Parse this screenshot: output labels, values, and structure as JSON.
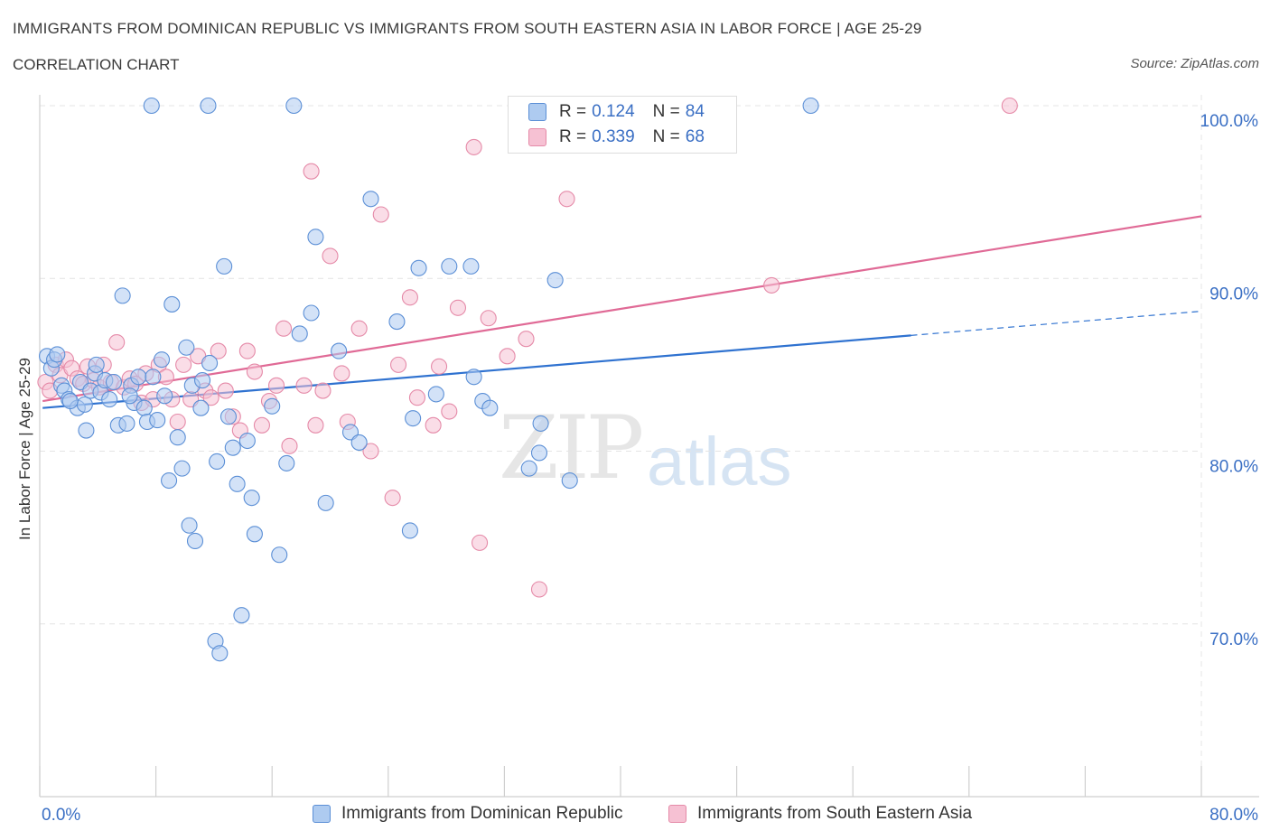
{
  "header": {
    "title": "IMMIGRANTS FROM DOMINICAN REPUBLIC VS IMMIGRANTS FROM SOUTH EASTERN ASIA IN LABOR FORCE | AGE 25-29",
    "subtitle": "CORRELATION CHART",
    "source": "Source: ZipAtlas.com"
  },
  "watermark": {
    "zip": "ZIP",
    "atlas": "atlas"
  },
  "legend": {
    "rows": [
      {
        "r_label": "R =",
        "r_value": "0.124",
        "n_label": "N =",
        "n_value": "84"
      },
      {
        "r_label": "R =",
        "r_value": "0.339",
        "n_label": "N =",
        "n_value": "68"
      }
    ]
  },
  "bottom_legend": {
    "series1": "Immigrants from Dominican Republic",
    "series2": "Immigrants from South Eastern Asia"
  },
  "colors": {
    "blue_fill": "#aecbf0",
    "blue_stroke": "#5b8fd6",
    "blue_line": "#2f72d0",
    "pink_fill": "#f6c1d3",
    "pink_stroke": "#e58aa8",
    "pink_line": "#e06a96",
    "tick_text": "#3a6fc4",
    "grid": "#e4e4e4"
  },
  "chart_data": {
    "type": "scatter",
    "title": "IMMIGRANTS FROM DOMINICAN REPUBLIC VS IMMIGRANTS FROM SOUTH EASTERN ASIA IN LABOR FORCE | AGE 25-29",
    "ylabel": "In Labor Force | Age 25-29",
    "xlim": [
      0,
      80
    ],
    "ylim": [
      60,
      100
    ],
    "x_tick_labels": [
      "0.0%",
      "80.0%"
    ],
    "y_ticks": [
      {
        "value": 100,
        "label": "100.0%"
      },
      {
        "value": 90,
        "label": "90.0%"
      },
      {
        "value": 80,
        "label": "80.0%"
      },
      {
        "value": 70,
        "label": "70.0%"
      }
    ],
    "grid": true,
    "legend_position": "top-center",
    "series": [
      {
        "name": "Immigrants from Dominican Republic",
        "R": 0.124,
        "N": 84,
        "trend": {
          "x0": 0.2,
          "y0": 82.5,
          "x1": 60.0,
          "y1": 86.7,
          "dash_to_x": 80.0,
          "dash_to_y": 88.1
        },
        "points": [
          [
            0.5,
            85.5
          ],
          [
            0.8,
            84.8
          ],
          [
            1.0,
            85.3
          ],
          [
            1.2,
            85.6
          ],
          [
            1.5,
            83.8
          ],
          [
            1.7,
            83.5
          ],
          [
            2.0,
            83.0
          ],
          [
            2.6,
            82.5
          ],
          [
            2.8,
            84.0
          ],
          [
            3.1,
            82.7
          ],
          [
            3.2,
            81.2
          ],
          [
            3.5,
            83.5
          ],
          [
            3.8,
            84.5
          ],
          [
            3.9,
            85.0
          ],
          [
            4.2,
            83.4
          ],
          [
            4.5,
            84.1
          ],
          [
            4.8,
            83.0
          ],
          [
            5.1,
            84.0
          ],
          [
            5.4,
            81.5
          ],
          [
            5.7,
            89.0
          ],
          [
            6.0,
            81.6
          ],
          [
            6.3,
            83.8
          ],
          [
            6.5,
            82.8
          ],
          [
            6.8,
            84.3
          ],
          [
            7.2,
            82.5
          ],
          [
            7.4,
            81.7
          ],
          [
            7.7,
            100.0
          ],
          [
            7.8,
            84.3
          ],
          [
            8.1,
            81.8
          ],
          [
            8.4,
            85.3
          ],
          [
            8.6,
            83.2
          ],
          [
            8.9,
            78.3
          ],
          [
            9.1,
            88.5
          ],
          [
            9.5,
            80.8
          ],
          [
            9.8,
            79.0
          ],
          [
            10.1,
            86.0
          ],
          [
            10.3,
            75.7
          ],
          [
            10.5,
            83.8
          ],
          [
            10.7,
            74.8
          ],
          [
            11.1,
            82.5
          ],
          [
            11.2,
            84.1
          ],
          [
            11.6,
            100.0
          ],
          [
            11.7,
            85.1
          ],
          [
            12.1,
            69.0
          ],
          [
            12.2,
            79.4
          ],
          [
            12.4,
            68.3
          ],
          [
            12.7,
            90.7
          ],
          [
            13.0,
            82.0
          ],
          [
            13.3,
            80.2
          ],
          [
            13.6,
            78.1
          ],
          [
            13.9,
            70.5
          ],
          [
            14.3,
            80.6
          ],
          [
            14.6,
            77.3
          ],
          [
            14.8,
            75.2
          ],
          [
            16.0,
            82.6
          ],
          [
            16.5,
            74.0
          ],
          [
            17.0,
            79.3
          ],
          [
            17.5,
            100.0
          ],
          [
            17.9,
            86.8
          ],
          [
            18.7,
            88.0
          ],
          [
            19.0,
            92.4
          ],
          [
            19.7,
            77.0
          ],
          [
            20.6,
            85.8
          ],
          [
            21.4,
            81.1
          ],
          [
            22.0,
            80.5
          ],
          [
            22.8,
            94.6
          ],
          [
            24.6,
            87.5
          ],
          [
            25.5,
            75.4
          ],
          [
            25.7,
            81.9
          ],
          [
            26.1,
            90.6
          ],
          [
            27.3,
            83.3
          ],
          [
            28.2,
            90.7
          ],
          [
            29.7,
            90.7
          ],
          [
            29.9,
            84.3
          ],
          [
            30.5,
            82.9
          ],
          [
            31.0,
            82.5
          ],
          [
            33.7,
            79.0
          ],
          [
            34.4,
            79.9
          ],
          [
            34.5,
            81.6
          ],
          [
            35.5,
            89.9
          ],
          [
            36.5,
            78.3
          ],
          [
            53.1,
            100.0
          ],
          [
            2.1,
            82.9
          ],
          [
            6.2,
            83.2
          ]
        ]
      },
      {
        "name": "Immigrants from South Eastern Asia",
        "R": 0.339,
        "N": 68,
        "trend": {
          "x0": 0.2,
          "y0": 82.9,
          "x1": 80.0,
          "y1": 93.6
        },
        "points": [
          [
            0.4,
            84.0
          ],
          [
            0.7,
            83.5
          ],
          [
            1.1,
            85.0
          ],
          [
            1.4,
            84.4
          ],
          [
            1.8,
            85.3
          ],
          [
            2.2,
            84.8
          ],
          [
            2.6,
            84.2
          ],
          [
            3.0,
            83.9
          ],
          [
            3.3,
            84.9
          ],
          [
            3.7,
            84.1
          ],
          [
            4.1,
            83.7
          ],
          [
            4.4,
            85.0
          ],
          [
            4.9,
            84.0
          ],
          [
            5.3,
            86.3
          ],
          [
            5.8,
            83.7
          ],
          [
            6.2,
            84.2
          ],
          [
            6.6,
            83.9
          ],
          [
            7.0,
            82.8
          ],
          [
            7.3,
            84.5
          ],
          [
            7.8,
            83.0
          ],
          [
            8.2,
            85.0
          ],
          [
            8.7,
            84.3
          ],
          [
            9.1,
            83.0
          ],
          [
            9.5,
            81.7
          ],
          [
            9.9,
            85.0
          ],
          [
            10.4,
            83.0
          ],
          [
            10.9,
            85.5
          ],
          [
            11.4,
            83.5
          ],
          [
            11.8,
            83.1
          ],
          [
            12.3,
            85.8
          ],
          [
            12.8,
            83.5
          ],
          [
            13.3,
            82.0
          ],
          [
            13.8,
            81.2
          ],
          [
            14.3,
            85.8
          ],
          [
            14.8,
            84.6
          ],
          [
            15.3,
            81.5
          ],
          [
            15.8,
            82.9
          ],
          [
            16.3,
            83.8
          ],
          [
            16.8,
            87.1
          ],
          [
            17.2,
            80.3
          ],
          [
            18.2,
            83.8
          ],
          [
            18.7,
            96.2
          ],
          [
            19.0,
            81.5
          ],
          [
            19.5,
            83.5
          ],
          [
            20.0,
            91.3
          ],
          [
            20.8,
            84.5
          ],
          [
            21.2,
            81.7
          ],
          [
            22.0,
            87.1
          ],
          [
            22.8,
            80.0
          ],
          [
            23.5,
            93.7
          ],
          [
            24.3,
            77.3
          ],
          [
            24.7,
            85.0
          ],
          [
            25.5,
            88.9
          ],
          [
            26.0,
            83.1
          ],
          [
            27.1,
            81.5
          ],
          [
            27.5,
            84.9
          ],
          [
            28.2,
            82.3
          ],
          [
            28.8,
            88.3
          ],
          [
            29.9,
            97.6
          ],
          [
            30.3,
            74.7
          ],
          [
            30.9,
            87.7
          ],
          [
            32.2,
            85.5
          ],
          [
            33.0,
            100.0
          ],
          [
            33.5,
            86.5
          ],
          [
            34.4,
            72.0
          ],
          [
            36.3,
            94.6
          ],
          [
            50.4,
            89.6
          ],
          [
            66.8,
            100.0
          ]
        ]
      }
    ]
  }
}
